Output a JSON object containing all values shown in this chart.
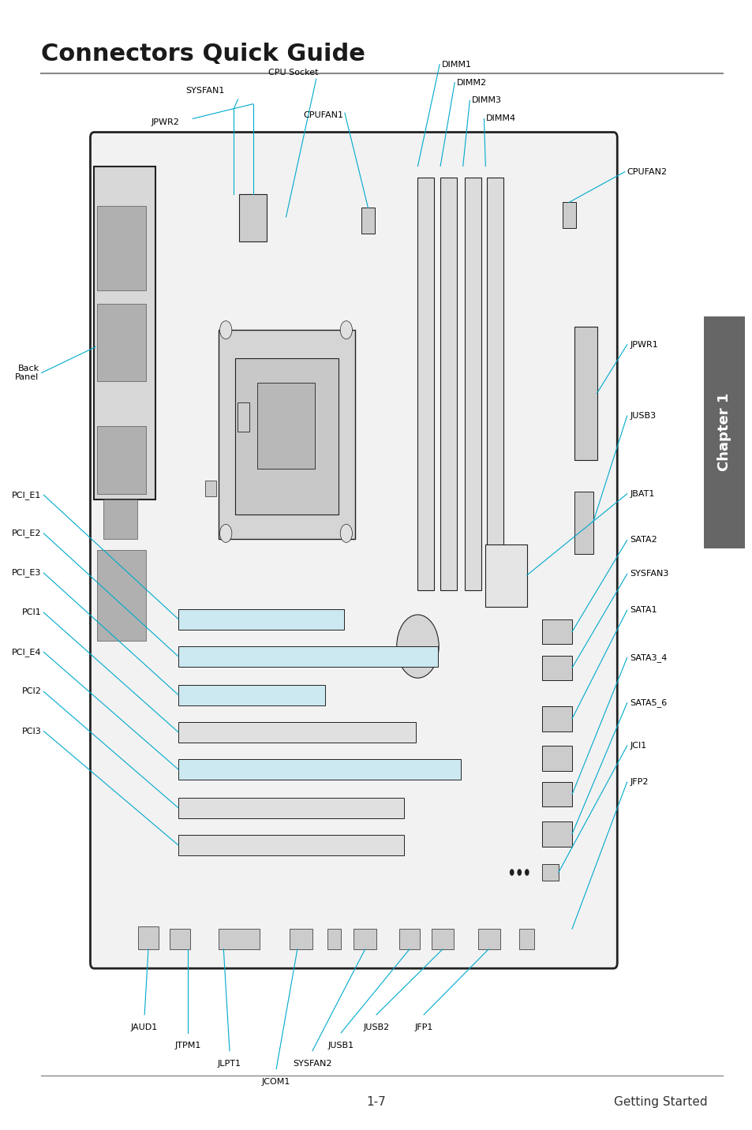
{
  "title": "Connectors Quick Guide",
  "footer_left": "1-7",
  "footer_right": "Getting Started",
  "chapter_label": "Chapter 1",
  "bg_color": "#ffffff",
  "title_color": "#1a1a1a",
  "line_color": "#888888",
  "connector_line_color": "#00aacc",
  "board_border_color": "#222222",
  "chapter_bg": "#666666",
  "chapter_text_color": "#ffffff"
}
